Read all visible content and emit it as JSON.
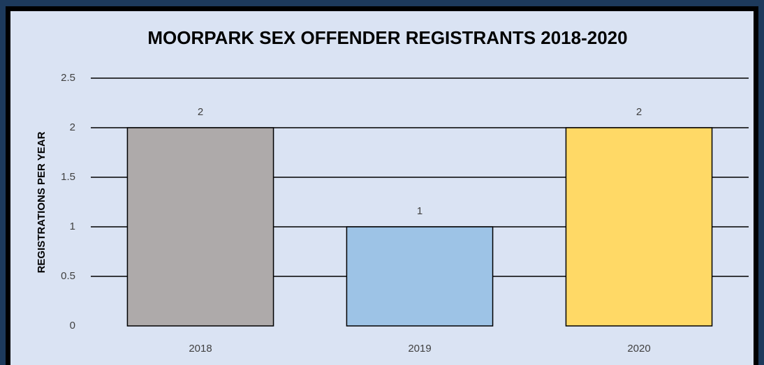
{
  "chart_data": {
    "type": "bar",
    "title": "MOORPARK SEX OFFENDER REGISTRANTS 2018-2020",
    "y_label": "REGISTRATIONS PER YEAR",
    "categories": [
      "2018",
      "2019",
      "2020"
    ],
    "values": [
      2,
      1,
      2
    ],
    "colors": [
      "#aeaaaa",
      "#9dc3e6",
      "#ffd966"
    ],
    "ylim": [
      0,
      2.5
    ],
    "yticks": [
      0,
      0.5,
      1,
      1.5,
      2,
      2.5
    ],
    "grid": true
  }
}
